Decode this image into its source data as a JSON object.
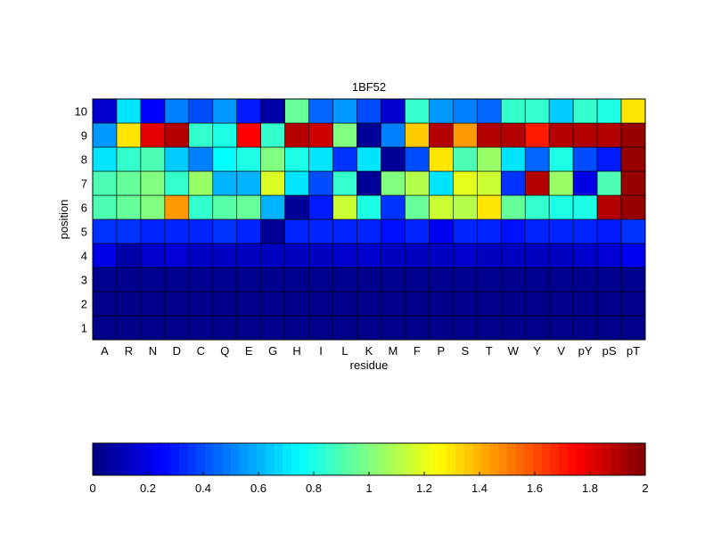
{
  "chart_data": {
    "type": "heatmap",
    "title": "1BF52",
    "xlabel": "residue",
    "ylabel": "position",
    "categories": [
      "A",
      "R",
      "N",
      "D",
      "C",
      "Q",
      "E",
      "G",
      "H",
      "I",
      "L",
      "K",
      "M",
      "F",
      "P",
      "S",
      "T",
      "W",
      "Y",
      "V",
      "pY",
      "pS",
      "pT"
    ],
    "positions": [
      "1",
      "2",
      "3",
      "4",
      "5",
      "6",
      "7",
      "8",
      "9",
      "10"
    ],
    "values": [
      [
        0.02,
        0.02,
        0.02,
        0.02,
        0.02,
        0.02,
        0.02,
        0.02,
        0.02,
        0.02,
        0.02,
        0.02,
        0.02,
        0.02,
        0.02,
        0.02,
        0.02,
        0.02,
        0.02,
        0.02,
        0.02,
        0.02,
        0.02
      ],
      [
        0.02,
        0.02,
        0.02,
        0.02,
        0.02,
        0.02,
        0.02,
        0.02,
        0.02,
        0.02,
        0.02,
        0.02,
        0.02,
        0.02,
        0.02,
        0.02,
        0.02,
        0.02,
        0.02,
        0.02,
        0.02,
        0.02,
        0.02
      ],
      [
        0.03,
        0.03,
        0.03,
        0.03,
        0.03,
        0.03,
        0.03,
        0.03,
        0.03,
        0.03,
        0.03,
        0.03,
        0.03,
        0.03,
        0.03,
        0.03,
        0.03,
        0.03,
        0.03,
        0.03,
        0.03,
        0.03,
        0.03
      ],
      [
        0.2,
        0.08,
        0.15,
        0.17,
        0.13,
        0.13,
        0.13,
        0.13,
        0.13,
        0.13,
        0.15,
        0.15,
        0.13,
        0.13,
        0.13,
        0.15,
        0.13,
        0.13,
        0.13,
        0.13,
        0.15,
        0.17,
        0.22
      ],
      [
        0.35,
        0.35,
        0.32,
        0.32,
        0.32,
        0.35,
        0.32,
        0.05,
        0.32,
        0.32,
        0.32,
        0.32,
        0.28,
        0.32,
        0.22,
        0.32,
        0.32,
        0.28,
        0.32,
        0.32,
        0.32,
        0.3,
        0.35
      ],
      [
        0.9,
        0.95,
        1.0,
        1.45,
        0.85,
        0.92,
        0.95,
        0.6,
        0.05,
        0.3,
        1.15,
        0.8,
        0.35,
        0.95,
        1.15,
        1.1,
        1.3,
        0.95,
        0.85,
        0.8,
        0.8,
        1.9,
        1.95
      ],
      [
        0.9,
        0.95,
        1.0,
        0.85,
        1.05,
        0.6,
        0.6,
        1.18,
        0.7,
        0.4,
        0.85,
        0.05,
        1.0,
        1.1,
        0.7,
        1.2,
        1.15,
        0.35,
        1.9,
        1.05,
        0.2,
        0.9,
        1.95
      ],
      [
        0.7,
        0.85,
        0.9,
        0.65,
        0.5,
        0.75,
        0.8,
        1.0,
        0.8,
        0.7,
        0.35,
        0.7,
        0.05,
        0.4,
        1.3,
        0.9,
        1.05,
        0.7,
        0.45,
        0.8,
        0.4,
        0.3,
        1.95
      ],
      [
        0.55,
        1.3,
        1.8,
        1.9,
        0.85,
        0.8,
        1.75,
        0.85,
        1.9,
        1.85,
        1.0,
        0.05,
        0.5,
        1.35,
        1.9,
        1.45,
        1.9,
        1.9,
        1.7,
        1.9,
        1.9,
        1.9,
        1.95
      ],
      [
        0.15,
        0.7,
        0.25,
        0.5,
        0.4,
        0.55,
        0.3,
        0.08,
        0.95,
        0.45,
        0.55,
        0.4,
        0.15,
        0.85,
        0.55,
        0.5,
        0.45,
        0.85,
        0.85,
        0.65,
        0.85,
        0.8,
        1.3
      ]
    ],
    "colorbar": {
      "colormap": "jet",
      "range": [
        0,
        2
      ],
      "ticks": [
        "0",
        "0.2",
        "0.4",
        "0.6",
        "0.8",
        "1",
        "1.2",
        "1.4",
        "1.6",
        "1.8",
        "2"
      ]
    },
    "ytick_labels": [
      "1",
      "2",
      "3",
      "4",
      "5",
      "6",
      "7",
      "8",
      "9",
      "10"
    ]
  }
}
